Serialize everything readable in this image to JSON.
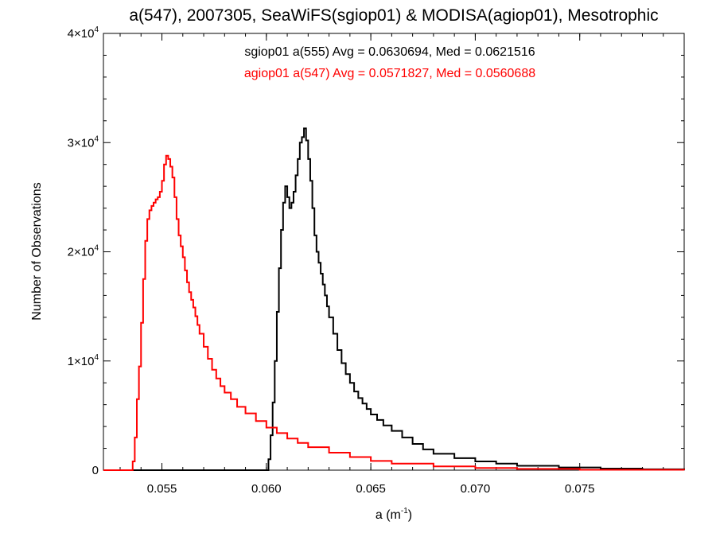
{
  "chart_data": {
    "type": "line",
    "title": "a(547), 2007305, SeaWiFS(sgiop01) & MODISA(agiop01), Mesotrophic",
    "xlabel_base": "a (m",
    "xlabel_sup": "-1",
    "xlabel_end": ")",
    "ylabel": "Number of Observations",
    "xlim": [
      0.0522,
      0.08
    ],
    "ylim": [
      0,
      40000
    ],
    "x_ticks": [
      0.055,
      0.06,
      0.065,
      0.07,
      0.075
    ],
    "x_tick_labels": [
      "0.055",
      "0.060",
      "0.065",
      "0.070",
      "0.075"
    ],
    "y_ticks": [
      0,
      10000,
      20000,
      30000,
      40000
    ],
    "y_tick_labels": [
      {
        "base": "0",
        "exp": ""
      },
      {
        "base": "1×10",
        "exp": "4"
      },
      {
        "base": "2×10",
        "exp": "4"
      },
      {
        "base": "3×10",
        "exp": "4"
      },
      {
        "base": "4×10",
        "exp": "4"
      }
    ],
    "annotations": [
      {
        "text": "sgiop01 a(555) Avg = 0.0630694, Med = 0.0621516",
        "color": "#000000"
      },
      {
        "text": "agiop01 a(547) Avg = 0.0571827, Med = 0.0560688",
        "color": "#ff0000"
      }
    ],
    "bin_width": 0.0001,
    "series": [
      {
        "color": "#000000",
        "x": [
          0.0522,
          0.06,
          0.0601,
          0.0602,
          0.0603,
          0.0604,
          0.0605,
          0.0606,
          0.0607,
          0.0608,
          0.0609,
          0.061,
          0.0611,
          0.0612,
          0.0613,
          0.0614,
          0.0615,
          0.0616,
          0.0617,
          0.0618,
          0.0619,
          0.062,
          0.0621,
          0.0622,
          0.0623,
          0.0624,
          0.0625,
          0.0626,
          0.0627,
          0.0628,
          0.0629,
          0.063,
          0.0632,
          0.0634,
          0.0636,
          0.0638,
          0.064,
          0.0642,
          0.0644,
          0.0646,
          0.0648,
          0.065,
          0.0653,
          0.0656,
          0.066,
          0.0665,
          0.067,
          0.0675,
          0.068,
          0.069,
          0.07,
          0.071,
          0.072,
          0.074,
          0.076,
          0.078,
          0.08
        ],
        "y": [
          0,
          0,
          1000,
          3200,
          6200,
          10000,
          14500,
          18500,
          22000,
          24500,
          26000,
          25000,
          24000,
          24500,
          25500,
          27000,
          28500,
          30000,
          30500,
          31300,
          30200,
          28500,
          26500,
          24000,
          21500,
          20000,
          19000,
          18000,
          17000,
          16000,
          15000,
          14000,
          12500,
          11000,
          9800,
          8800,
          8000,
          7200,
          6600,
          6100,
          5600,
          5100,
          4600,
          4100,
          3600,
          3000,
          2400,
          1900,
          1500,
          1100,
          800,
          600,
          400,
          250,
          150,
          80,
          0
        ]
      },
      {
        "color": "#ff0000",
        "x": [
          0.0522,
          0.0535,
          0.0536,
          0.0537,
          0.0538,
          0.0539,
          0.054,
          0.0541,
          0.0542,
          0.0543,
          0.0544,
          0.0545,
          0.0546,
          0.0547,
          0.0548,
          0.0549,
          0.055,
          0.0551,
          0.0552,
          0.0553,
          0.0554,
          0.0555,
          0.0556,
          0.0557,
          0.0558,
          0.0559,
          0.056,
          0.0561,
          0.0562,
          0.0563,
          0.0564,
          0.0565,
          0.0566,
          0.0567,
          0.0568,
          0.057,
          0.0572,
          0.0574,
          0.0576,
          0.0578,
          0.058,
          0.0583,
          0.0586,
          0.059,
          0.0595,
          0.06,
          0.0605,
          0.061,
          0.0615,
          0.062,
          0.063,
          0.064,
          0.065,
          0.066,
          0.068,
          0.07,
          0.072,
          0.075,
          0.08
        ],
        "y": [
          0,
          0,
          800,
          3000,
          6500,
          9500,
          13500,
          17500,
          21000,
          23000,
          23800,
          24200,
          24500,
          24800,
          25000,
          25500,
          26500,
          28000,
          28800,
          28500,
          27800,
          26800,
          25000,
          23000,
          21500,
          20500,
          19500,
          18300,
          17200,
          16300,
          15600,
          14900,
          14100,
          13300,
          12500,
          11300,
          10200,
          9200,
          8400,
          7700,
          7100,
          6500,
          5800,
          5200,
          4500,
          3900,
          3400,
          2900,
          2500,
          2100,
          1600,
          1200,
          850,
          600,
          350,
          200,
          120,
          40,
          0
        ]
      }
    ]
  }
}
